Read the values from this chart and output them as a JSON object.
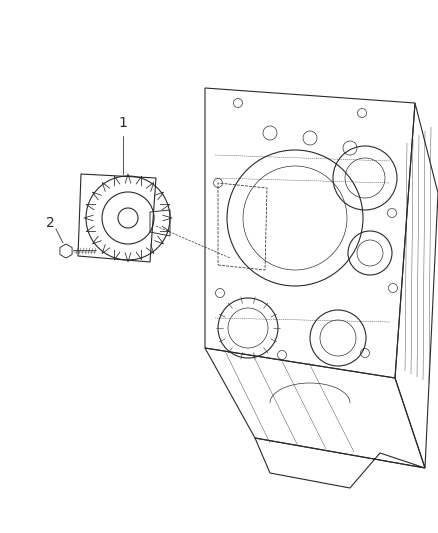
{
  "background_color": "#ffffff",
  "line_color": "#2a2a2a",
  "label_1": "1",
  "label_2": "2",
  "figsize": [
    4.38,
    5.33
  ],
  "dpi": 100
}
